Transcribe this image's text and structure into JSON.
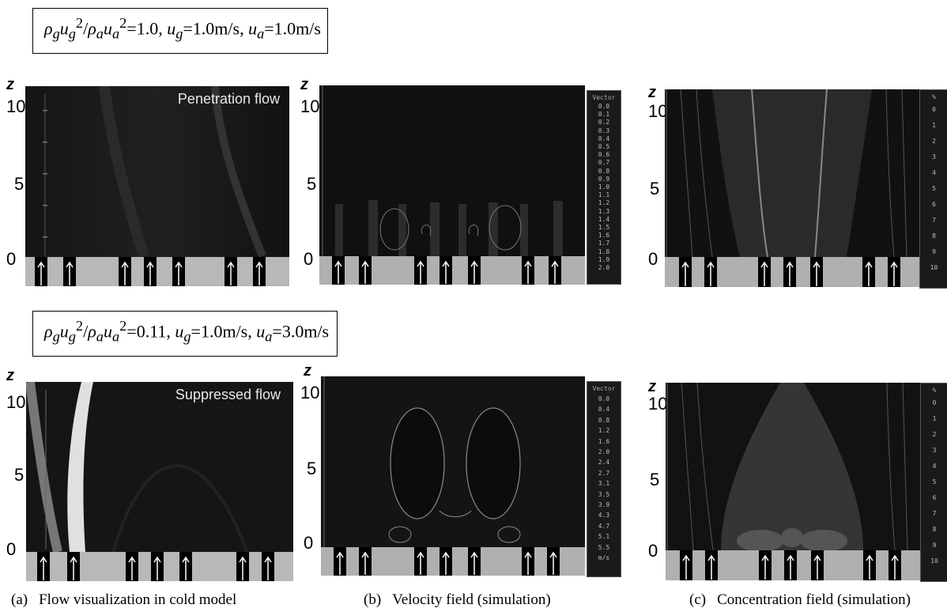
{
  "conditions": {
    "top": {
      "ratio": "=1.0",
      "ug": "=1.0m/s",
      "ua": "=1.0m/s"
    },
    "bottom": {
      "ratio": "=0.11",
      "ug": "=1.0m/s",
      "ua": "=3.0m/s"
    }
  },
  "axis": {
    "z_label": "z",
    "ticks": [
      "10",
      "5",
      "0"
    ]
  },
  "panel_labels": {
    "top": "Penetration flow",
    "bottom": "Suppressed flow"
  },
  "legend_top_b": {
    "title": "Vector",
    "values": [
      "0.0",
      "0.1",
      "0.2",
      "0.3",
      "0.4",
      "0.5",
      "0.6",
      "0.7",
      "0.8",
      "0.9",
      "1.0",
      "1.1",
      "1.2",
      "1.3",
      "1.4",
      "1.5",
      "1.6",
      "1.7",
      "1.8",
      "1.9",
      "2.0"
    ]
  },
  "legend_bottom_b": {
    "title": "Vector",
    "values": [
      "0.0",
      "0.4",
      "0.8",
      "1.2",
      "1.6",
      "2.0",
      "2.4",
      "2.7",
      "3.1",
      "3.5",
      "3.9",
      "4.3",
      "4.7",
      "5.1",
      "5.5"
    ],
    "unit": "m/s"
  },
  "legend_c": {
    "title": "%",
    "values": [
      "0",
      "1",
      "2",
      "3",
      "4",
      "5",
      "6",
      "7",
      "8",
      "9",
      "10"
    ]
  },
  "captions": [
    {
      "letter": "(a)",
      "text": "Flow visualization in cold model"
    },
    {
      "letter": "(b)",
      "text": "Velocity field (simulation)"
    },
    {
      "letter": "(c)",
      "text": "Concentration field (simulation)"
    }
  ]
}
